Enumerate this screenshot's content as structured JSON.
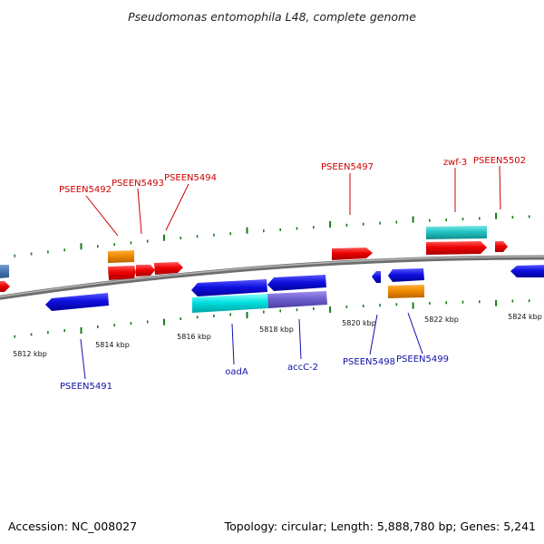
{
  "title": "Pseudomonas entomophila L48, complete genome",
  "footer": {
    "accession": "Accession: NC_008027",
    "summary": "Topology: circular; Length: 5,888,780 bp; Genes: 5,241"
  },
  "colors": {
    "forward_label": "#cc0000",
    "reverse_label": "#1010aa",
    "tick": "#1a7a1a",
    "backbone": "#8a8a8a"
  },
  "scale": {
    "tick_labels": [
      "5812 kbp",
      "5814 kbp",
      "5816 kbp",
      "5818 kbp",
      "5820 kbp",
      "5822 kbp",
      "5824 kbp"
    ]
  },
  "genes": {
    "forward_labels": [
      "PSEEN5492",
      "PSEEN5493",
      "PSEEN5494",
      "PSEEN5497",
      "zwf-3",
      "PSEEN5502"
    ],
    "reverse_labels": [
      "PSEEN5491",
      "oadA",
      "accC-2",
      "PSEEN5498",
      "PSEEN5499"
    ]
  }
}
